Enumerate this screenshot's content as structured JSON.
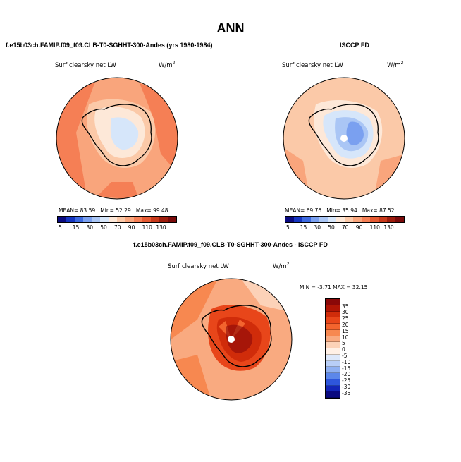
{
  "page": {
    "title": "ANN"
  },
  "chart_data": [
    {
      "type": "heatmap",
      "projection": "south-polar-stereographic",
      "title": "f.e15b03ch.FAMIP.f09_f09.CLB-T0-SGHHT-300-Andes (yrs 1980-1984)",
      "field_label": "Surf clearsky net LW",
      "units": "W/m",
      "units_exp": "2",
      "stats": {
        "mean_label": "MEAN=",
        "mean": "83.59",
        "min_label": "Min=",
        "min": "52.29",
        "max_label": "Max=",
        "max": "99.48"
      },
      "colorbar": {
        "levels": [
          "5",
          "15",
          "30",
          "50",
          "70",
          "90",
          "110",
          "130"
        ],
        "colors": [
          "#0a0a80",
          "#1535c0",
          "#3d6ae0",
          "#7aa0f0",
          "#aac6f5",
          "#d6e6fa",
          "#fde8d8",
          "#fbc9a8",
          "#f9a57c",
          "#f57f55",
          "#e55a32",
          "#c83a1b",
          "#9e1d0d",
          "#7a0a0a"
        ]
      }
    },
    {
      "type": "heatmap",
      "projection": "south-polar-stereographic",
      "title": "ISCCP FD",
      "field_label": "Surf clearsky net LW",
      "units": "W/m",
      "units_exp": "2",
      "stats": {
        "mean_label": "MEAN=",
        "mean": "69.76",
        "min_label": "Min=",
        "min": "35.94",
        "max_label": "Max=",
        "max": "87.52"
      },
      "colorbar": {
        "levels": [
          "5",
          "15",
          "30",
          "50",
          "70",
          "90",
          "110",
          "130"
        ],
        "colors": [
          "#0a0a80",
          "#1535c0",
          "#3d6ae0",
          "#7aa0f0",
          "#aac6f5",
          "#d6e6fa",
          "#fde8d8",
          "#fbc9a8",
          "#f9a57c",
          "#f57f55",
          "#e55a32",
          "#c83a1b",
          "#9e1d0d",
          "#7a0a0a"
        ]
      }
    },
    {
      "type": "heatmap",
      "projection": "south-polar-stereographic",
      "title": "f.e15b03ch.FAMIP.f09_f09.CLB-T0-SGHHT-300-Andes - ISCCP FD",
      "field_label": "Surf clearsky net LW",
      "units": "W/m",
      "units_exp": "2",
      "stats_text": "MIN = -3.71 MAX = 32.15",
      "stats": {
        "min": -3.71,
        "max": 32.15
      },
      "colorbar": {
        "levels": [
          "35",
          "30",
          "25",
          "20",
          "15",
          "10",
          "5",
          "0",
          "-5",
          "-10",
          "-15",
          "-20",
          "-25",
          "-30",
          "-35"
        ],
        "colors": [
          "#8a0808",
          "#b01505",
          "#d02c0a",
          "#e8461a",
          "#f3642e",
          "#f78850",
          "#f9aa80",
          "#fcd2b8",
          "#fff0e6",
          "#dde8fb",
          "#b8cef7",
          "#8fb0f2",
          "#5c87ea",
          "#2e56dc",
          "#1326b8",
          "#0a0a80"
        ]
      }
    }
  ]
}
